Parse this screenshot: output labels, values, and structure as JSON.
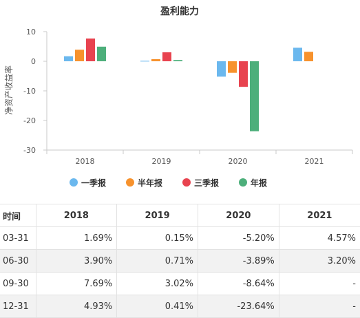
{
  "chart_data": {
    "type": "bar",
    "title": "盈利能力",
    "ylabel": "净资产收益率",
    "xlabel": "",
    "categories": [
      "2018",
      "2019",
      "2020",
      "2021"
    ],
    "ylim": [
      -30,
      10
    ],
    "yticks": [
      10,
      0,
      -10,
      -20,
      -30
    ],
    "grid": false,
    "legend_position": "bottom",
    "series": [
      {
        "name": "一季报",
        "color": "#6bb8ee",
        "values": [
          1.69,
          0.15,
          -5.2,
          4.57
        ]
      },
      {
        "name": "半年报",
        "color": "#f7922d",
        "values": [
          3.9,
          0.71,
          -3.89,
          3.2
        ]
      },
      {
        "name": "三季报",
        "color": "#e8434f",
        "values": [
          7.69,
          3.02,
          -8.64,
          null
        ]
      },
      {
        "name": "年报",
        "color": "#4daf7b",
        "values": [
          4.93,
          0.41,
          -23.64,
          null
        ]
      }
    ]
  },
  "table": {
    "header": [
      "时间",
      "2018",
      "2019",
      "2020",
      "2021"
    ],
    "rows": [
      [
        "03-31",
        "1.69%",
        "0.15%",
        "-5.20%",
        "4.57%"
      ],
      [
        "06-30",
        "3.90%",
        "0.71%",
        "-3.89%",
        "3.20%"
      ],
      [
        "09-30",
        "7.69%",
        "3.02%",
        "-8.64%",
        "-"
      ],
      [
        "12-31",
        "4.93%",
        "0.41%",
        "-23.64%",
        "-"
      ]
    ]
  }
}
